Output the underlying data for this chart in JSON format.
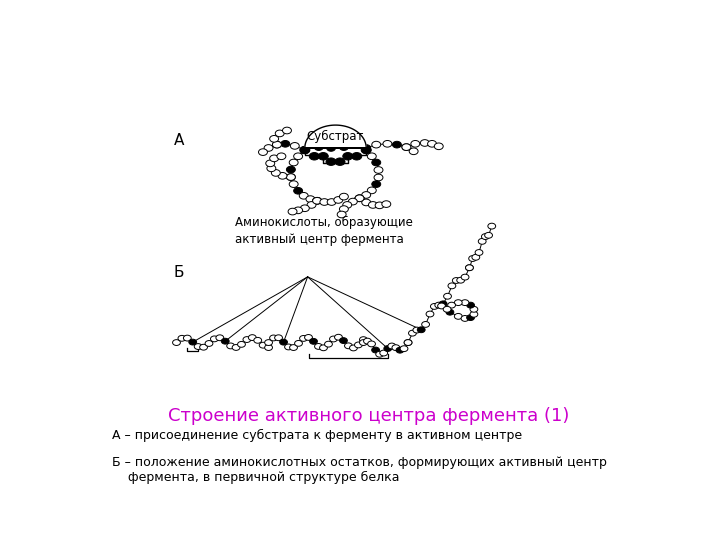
{
  "title": "Строение активного центра фермента (1)",
  "title_color": "#cc00cc",
  "title_fontsize": 13,
  "label_A": "А",
  "label_B": "Б",
  "substrate_label": "Субстрат",
  "amino_label": "Аминокислоты, образующие\nактивный центр фермента",
  "caption_A": "А – присоединение субстрата к ферменту в активном центре",
  "caption_B": "Б – положение аминокислотных остатков, формирующих активный центр\n    фермента, в первичной структуре белка",
  "bg_color": "#ffffff",
  "chain_color": "#000000",
  "open_circle_fc": "#ffffff",
  "filled_circle_fc": "#000000",
  "circle_ec": "#000000",
  "circle_r": 0.008,
  "filled_r": 0.009
}
